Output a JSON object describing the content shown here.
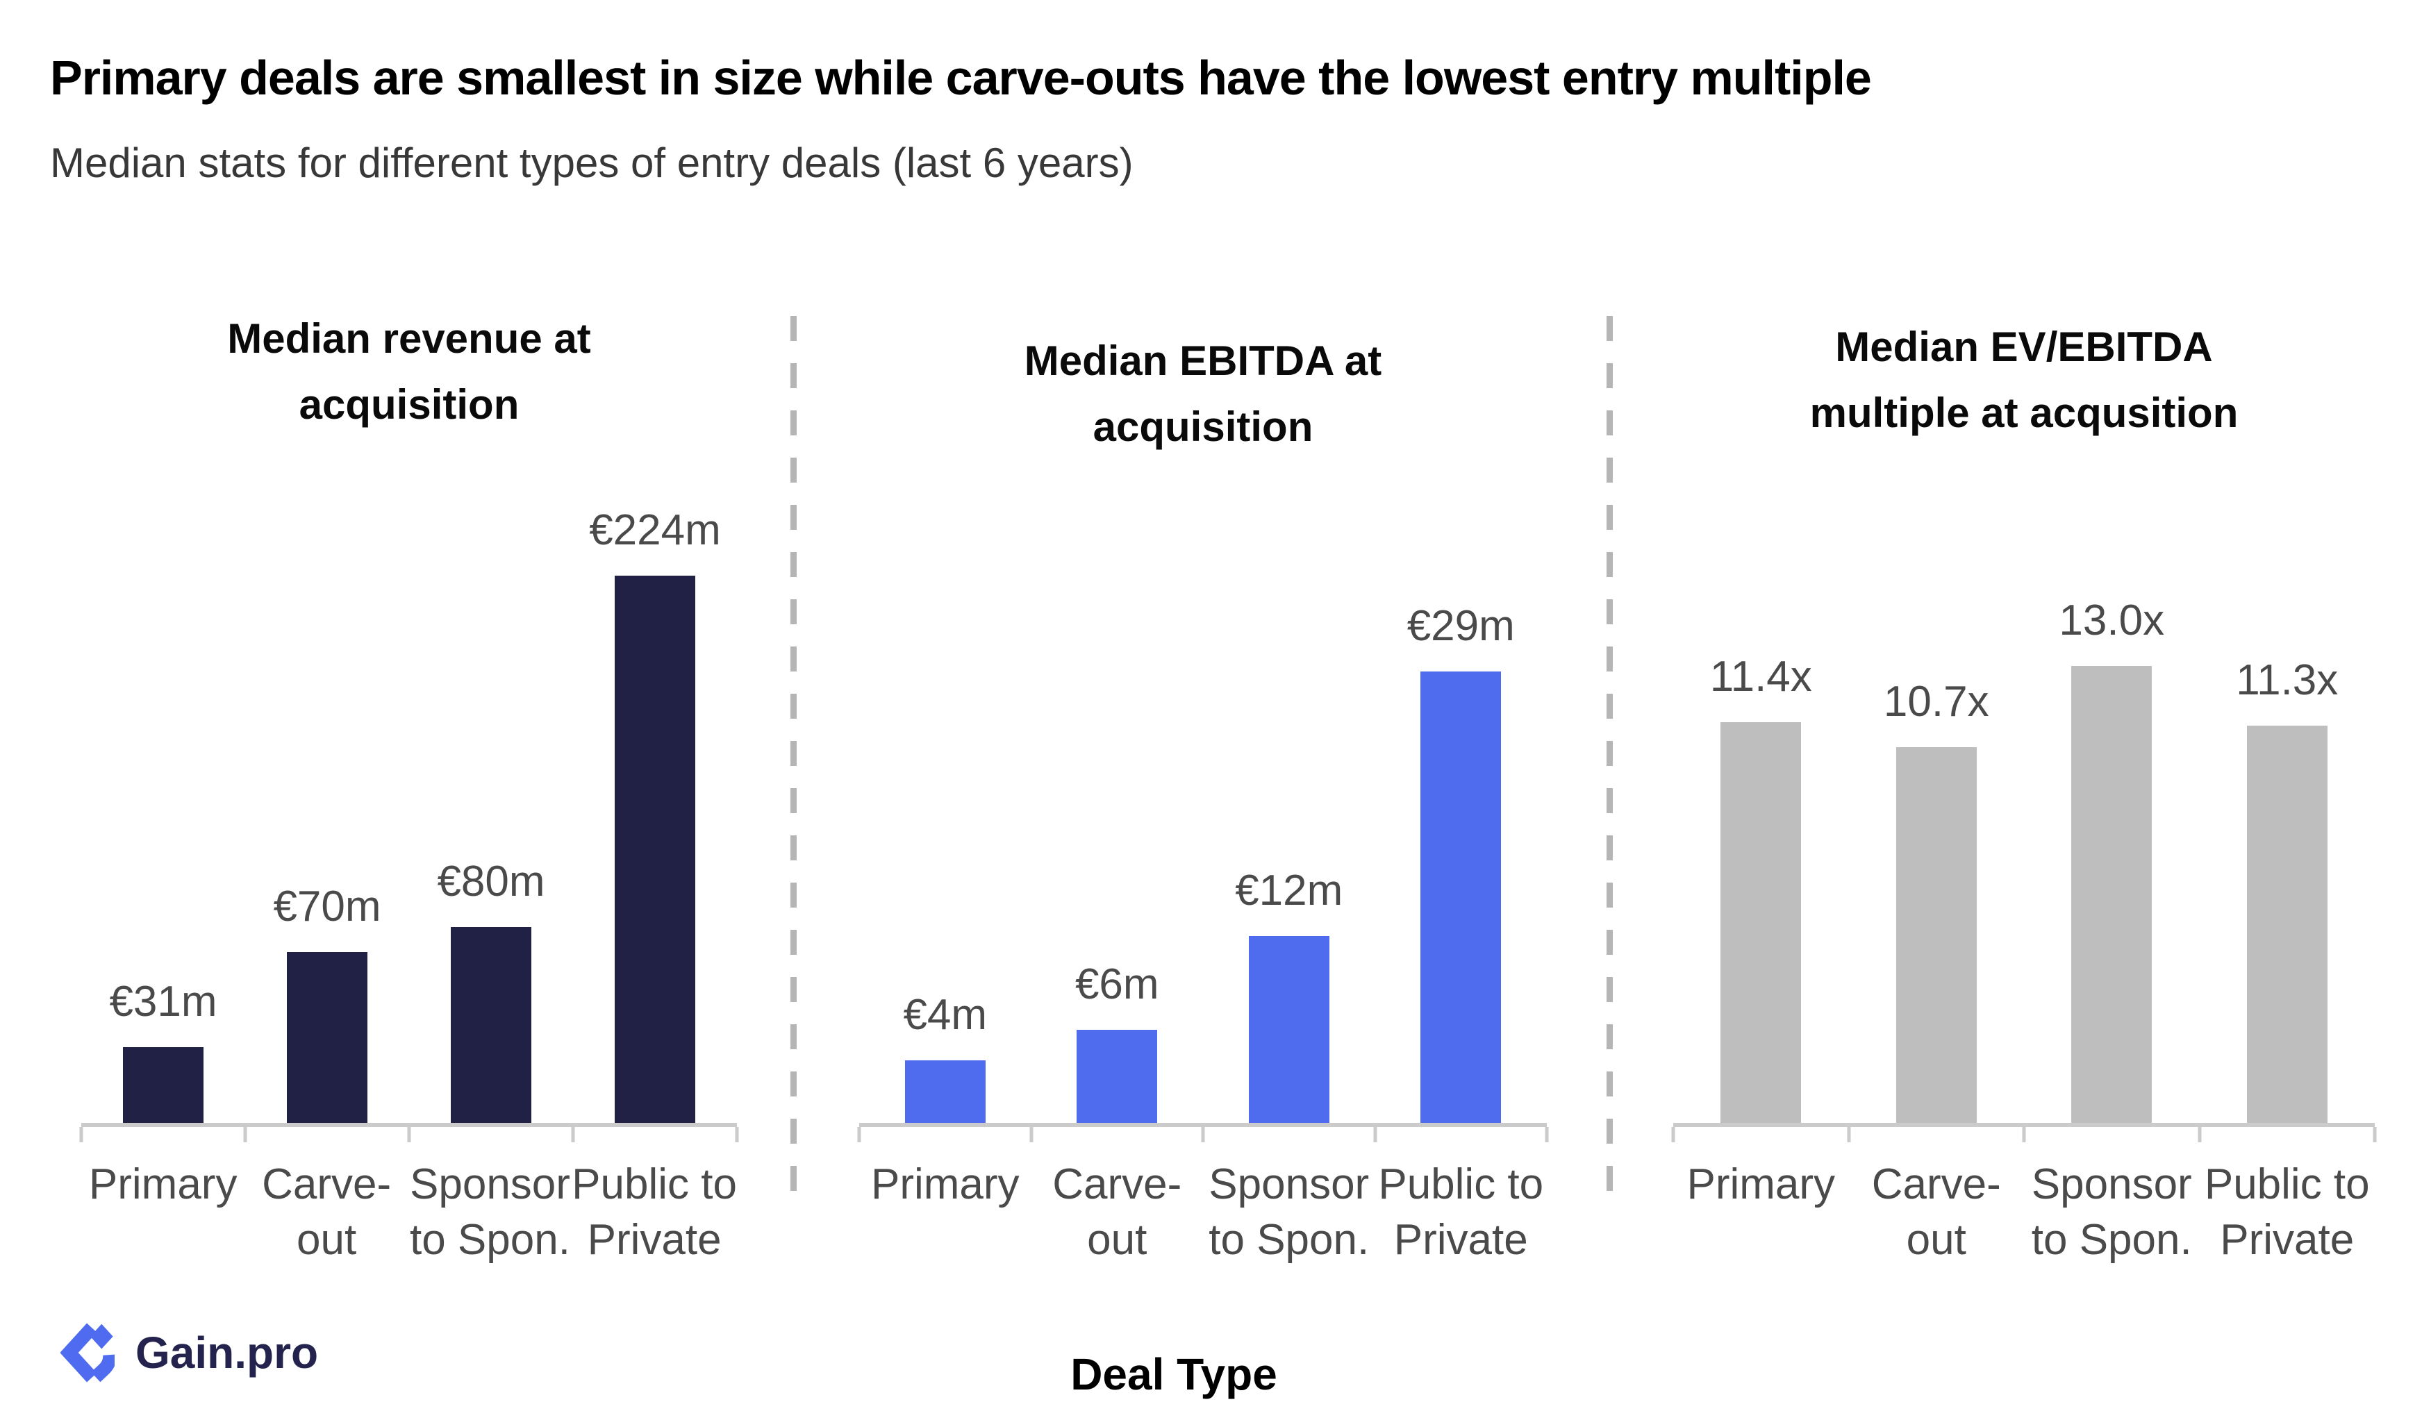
{
  "header": {
    "title": "Primary deals are smallest in size while carve-outs have the lowest entry multiple",
    "subtitle": "Median stats for different types of entry deals (last 6 years)"
  },
  "logo": {
    "text": "Gain.pro",
    "icon": "gainpro-diamond-mark",
    "icon_color": "#4f6bef",
    "text_color": "#23234e"
  },
  "colors": {
    "revenue_bar": "#212145",
    "ebitda_bar": "#506cee",
    "multiple_bar": "#bebebe",
    "label_gray": "#4a4a4a",
    "axis_gray": "#cbcbcb",
    "divider_gray": "#b5b5b5"
  },
  "chart_data": {
    "type": "bar",
    "x_axis_label": "Deal Type",
    "categories": [
      "Primary",
      "Carve-out",
      "Sponsor to Spon.",
      "Public to Private"
    ],
    "category_lines": [
      {
        "line1": "Primary",
        "line2": ""
      },
      {
        "line1": "Carve-",
        "line2": "out"
      },
      {
        "line1": "Sponsor",
        "line2": "to Spon."
      },
      {
        "line1": "Public to",
        "line2": "Private"
      }
    ],
    "legend": "none",
    "grid": "off",
    "panels": [
      {
        "title": [
          "Median revenue at",
          "acquisition"
        ],
        "unit": "EUR millions",
        "values": [
          31,
          70,
          80,
          224
        ],
        "value_labels": [
          "€31m",
          "€70m",
          "€80m",
          "€224m"
        ],
        "bar_color": "#212145",
        "ylim": [
          0,
          240
        ]
      },
      {
        "title": [
          "Median EBITDA at",
          "acquisition"
        ],
        "unit": "EUR millions",
        "values": [
          4,
          6,
          12,
          29
        ],
        "value_labels": [
          "€4m",
          "€6m",
          "€12m",
          "€29m"
        ],
        "bar_color": "#506cee",
        "ylim": [
          0,
          31
        ]
      },
      {
        "title": [
          "Median EV/EBITDA",
          "multiple at acqusition"
        ],
        "unit": "x EBITDA",
        "values": [
          11.4,
          10.7,
          13.0,
          11.3
        ],
        "value_labels": [
          "11.4x",
          "10.7x",
          "13.0x",
          "11.3x"
        ],
        "bar_color": "#bebebe",
        "ylim": [
          0,
          14
        ]
      }
    ]
  }
}
